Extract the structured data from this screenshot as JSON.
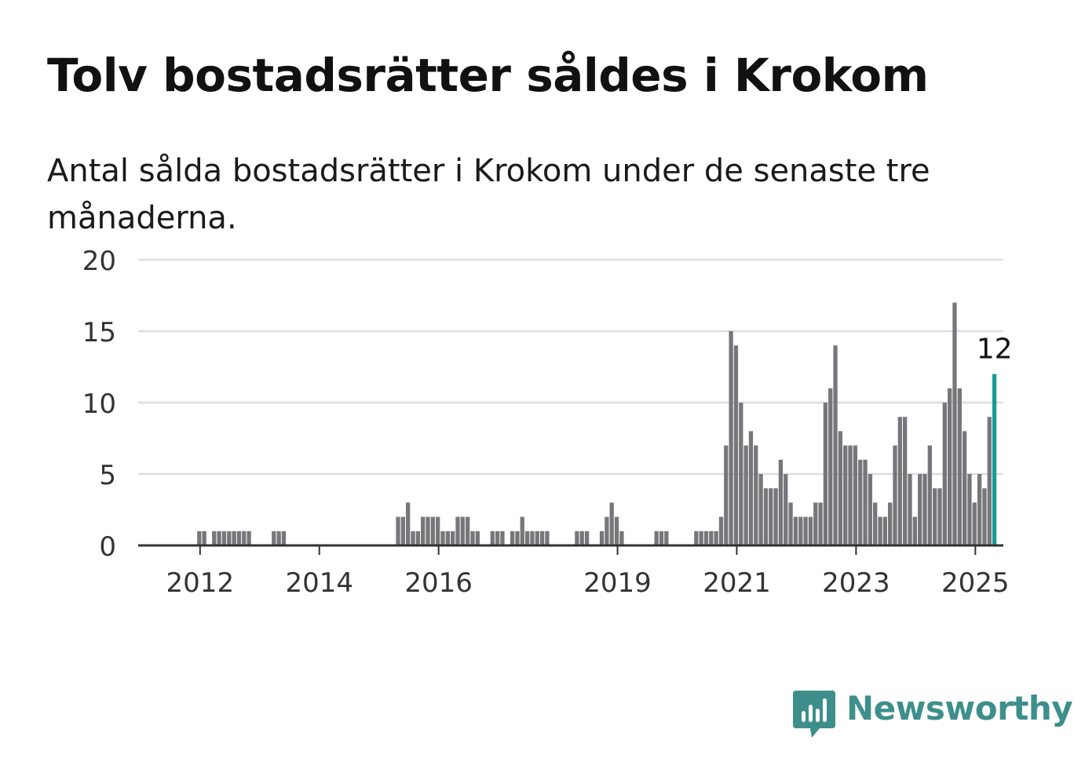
{
  "title": "Tolv bostadsrätter såldes i Krokom",
  "subtitle": "Antal sålda bostadsrätter i Krokom under de senaste tre månaderna.",
  "brand": {
    "name": "Newsworthy",
    "color": "#3e8f8b",
    "icon": "newsworthy-logo-icon"
  },
  "colors": {
    "bar": "#77767b",
    "highlight": "#1a9a96",
    "grid": "#dddddd",
    "axis": "#333333"
  },
  "chart_data": {
    "type": "bar",
    "title": "Tolv bostadsrätter såldes i Krokom",
    "xlabel": "",
    "ylabel": "",
    "ylim": [
      0,
      20
    ],
    "yticks": [
      0,
      5,
      10,
      15,
      20
    ],
    "xticks": [
      "2012",
      "2014",
      "2016",
      "2019",
      "2021",
      "2023",
      "2025"
    ],
    "grid": true,
    "start": "2011-09",
    "frequency": "monthly",
    "values": [
      0,
      0,
      0,
      0,
      1,
      1,
      0,
      1,
      1,
      1,
      1,
      1,
      1,
      1,
      1,
      0,
      0,
      0,
      0,
      1,
      1,
      1,
      0,
      0,
      0,
      0,
      0,
      0,
      0,
      0,
      0,
      0,
      0,
      0,
      0,
      0,
      0,
      0,
      0,
      0,
      0,
      0,
      0,
      0,
      2,
      2,
      3,
      1,
      1,
      2,
      2,
      2,
      2,
      1,
      1,
      1,
      2,
      2,
      2,
      1,
      1,
      0,
      0,
      1,
      1,
      1,
      0,
      1,
      1,
      2,
      1,
      1,
      1,
      1,
      1,
      0,
      0,
      0,
      0,
      0,
      1,
      1,
      1,
      0,
      0,
      1,
      2,
      3,
      2,
      1,
      0,
      0,
      0,
      0,
      0,
      0,
      1,
      1,
      1,
      0,
      0,
      0,
      0,
      0,
      1,
      1,
      1,
      1,
      1,
      2,
      7,
      15,
      14,
      10,
      7,
      8,
      7,
      5,
      4,
      4,
      4,
      6,
      5,
      3,
      2,
      2,
      2,
      2,
      3,
      3,
      10,
      11,
      14,
      8,
      7,
      7,
      7,
      6,
      6,
      5,
      3,
      2,
      2,
      3,
      7,
      9,
      9,
      5,
      2,
      5,
      5,
      7,
      4,
      4,
      10,
      11,
      17,
      11,
      8,
      5,
      3,
      5,
      4,
      9,
      12
    ],
    "annotation": {
      "label": "12",
      "index": "last"
    }
  }
}
